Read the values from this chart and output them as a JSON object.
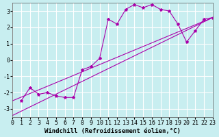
{
  "xlabel": "Windchill (Refroidissement éolien,°C)",
  "bg_color": "#c8eef0",
  "grid_color": "#ffffff",
  "line_color": "#aa00aa",
  "marker": "*",
  "xlim": [
    0,
    23
  ],
  "ylim": [
    -3.5,
    3.5
  ],
  "yticks": [
    -3,
    -2,
    -1,
    0,
    1,
    2,
    3
  ],
  "xticks": [
    0,
    1,
    2,
    3,
    4,
    5,
    6,
    7,
    8,
    9,
    10,
    11,
    12,
    13,
    14,
    15,
    16,
    17,
    18,
    19,
    20,
    21,
    22,
    23
  ],
  "line1_x": [
    1,
    2,
    3,
    4,
    5,
    6,
    7,
    8,
    9,
    10,
    11,
    12,
    13,
    14,
    15,
    16,
    17,
    18,
    19,
    20,
    21,
    22,
    23
  ],
  "line1_y": [
    -2.5,
    -1.7,
    -2.1,
    -2.0,
    -2.2,
    -2.3,
    -2.3,
    -0.6,
    -0.4,
    0.1,
    2.5,
    2.2,
    3.1,
    3.4,
    3.2,
    3.4,
    3.1,
    3.0,
    2.2,
    1.1,
    1.8,
    2.5,
    2.6
  ],
  "line2_x": [
    0,
    23
  ],
  "line2_y": [
    -3.4,
    2.6
  ],
  "line3_x": [
    0,
    23
  ],
  "line3_y": [
    -2.5,
    2.6
  ],
  "tick_fontsize": 6,
  "label_fontsize": 6.5,
  "linewidth": 0.8,
  "markersize": 3.0
}
